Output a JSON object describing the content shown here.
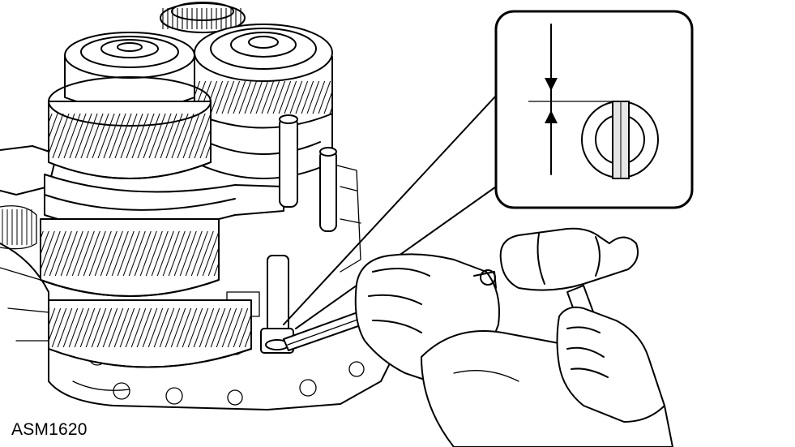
{
  "figure": {
    "caption": "ASM1620",
    "line_color": "#000000",
    "background_color": "#ffffff",
    "callout_fill": "#e6e6e6"
  }
}
